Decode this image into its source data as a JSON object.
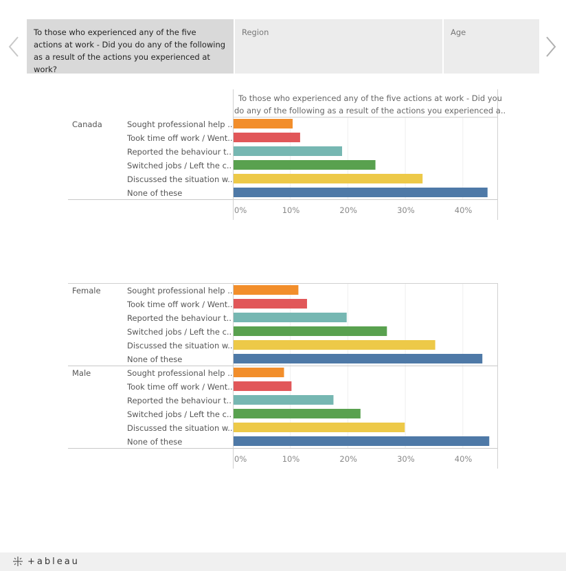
{
  "tabs": [
    {
      "label": "To those who experienced any of the five actions at work - Did you do any of the following as a result of the actions you experienced at work?",
      "active": true
    },
    {
      "label": "Region",
      "active": false
    },
    {
      "label": "Age",
      "active": false
    }
  ],
  "nav": {
    "prev_icon": "chevron-left-icon",
    "next_icon": "chevron-right-icon"
  },
  "footer": {
    "logo_text": "+ableau"
  },
  "chart_data": [
    {
      "type": "bar",
      "orientation": "horizontal",
      "column_header": "To those who experienced any of the five actions at work - Did you do any of the following as a result of the actions you experienced a..",
      "categories": [
        "Sought professional help ..",
        "Took time off work / Went..",
        "Reported the behaviour t..",
        "Switched jobs / Left the c..",
        "Discussed the situation w..",
        "None of these"
      ],
      "colors": [
        "#f28e2b",
        "#e15759",
        "#76b7b2",
        "#59a14f",
        "#edc948",
        "#4e79a7"
      ],
      "groups": [
        {
          "label": "Canada",
          "values": [
            10.4,
            11.7,
            19.0,
            24.8,
            33.0,
            44.3
          ]
        }
      ],
      "xlim": [
        0,
        46
      ],
      "x_ticks": [
        "0%",
        "10%",
        "20%",
        "30%",
        "40%"
      ],
      "x_tick_values": [
        0,
        10,
        20,
        30,
        40
      ],
      "grid": true
    },
    {
      "type": "bar",
      "orientation": "horizontal",
      "categories": [
        "Sought professional help ..",
        "Took time off work / Went..",
        "Reported the behaviour t..",
        "Switched jobs / Left the c..",
        "Discussed the situation w..",
        "None of these"
      ],
      "colors": [
        "#f28e2b",
        "#e15759",
        "#76b7b2",
        "#59a14f",
        "#edc948",
        "#4e79a7"
      ],
      "groups": [
        {
          "label": "Female",
          "values": [
            11.4,
            12.9,
            19.8,
            26.8,
            35.2,
            43.4
          ]
        },
        {
          "label": "Male",
          "values": [
            8.9,
            10.2,
            17.5,
            22.2,
            29.9,
            44.6
          ]
        }
      ],
      "xlim": [
        0,
        46
      ],
      "x_ticks": [
        "0%",
        "10%",
        "20%",
        "30%",
        "40%"
      ],
      "x_tick_values": [
        0,
        10,
        20,
        30,
        40
      ],
      "grid": true
    }
  ]
}
